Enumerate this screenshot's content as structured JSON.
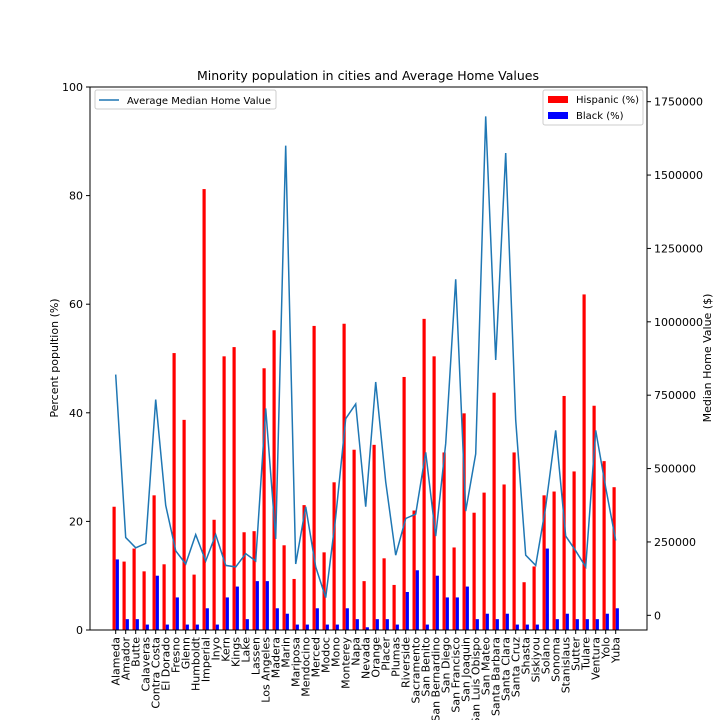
{
  "chart_data": {
    "type": "bar",
    "title": "Minority population in cities and Average Home Values",
    "ylabel": "Percent popultion (%)",
    "y2label": "Median Home Value ($)",
    "xlabel": "",
    "ylim": [
      0,
      100
    ],
    "y2lim": [
      -50000,
      1800000
    ],
    "yticks": [
      0,
      20,
      40,
      60,
      80,
      100
    ],
    "y2ticks": [
      0,
      250000,
      500000,
      750000,
      1000000,
      1250000,
      1500000,
      1750000
    ],
    "grid": false,
    "categories": [
      "Alameda",
      "Amador",
      "Butte",
      "Calaveras",
      "Contra Costa",
      "El Dorado",
      "Fresno",
      "Glenn",
      "Humboldt",
      "Imperial",
      "Inyo",
      "Kern",
      "Kings",
      "Lake",
      "Lassen",
      "Los Angeles",
      "Madera",
      "Marin",
      "Mariposa",
      "Mendocino",
      "Merced",
      "Modoc",
      "Mono",
      "Monterey",
      "Napa",
      "Nevada",
      "Orange",
      "Placer",
      "Plumas",
      "Riverside",
      "Sacramento",
      "San Benito",
      "San Bernardino",
      "San Diego",
      "San Francisco",
      "San Joaquin",
      "San Luis Obispo",
      "San Mateo",
      "Santa Barbara",
      "Santa Clara",
      "Santa Cruz",
      "Shasta",
      "Siskiyou",
      "Solano",
      "Sonoma",
      "Stanislaus",
      "Sutter",
      "Tulare",
      "Ventura",
      "Yolo",
      "Yuba"
    ],
    "series": [
      {
        "name": "Hispanic (%)",
        "kind": "bar",
        "axis": "left",
        "color": "#ff0000",
        "values": [
          22.7,
          12.6,
          15.0,
          10.8,
          24.8,
          12.1,
          51.0,
          38.7,
          10.2,
          81.2,
          20.3,
          50.4,
          52.1,
          18.0,
          18.2,
          48.2,
          55.2,
          15.6,
          9.4,
          23.0,
          56.0,
          14.3,
          27.2,
          56.4,
          33.2,
          9.0,
          34.1,
          13.2,
          8.3,
          46.6,
          22.0,
          57.3,
          50.4,
          32.7,
          15.2,
          39.9,
          21.6,
          25.3,
          43.7,
          26.8,
          32.7,
          8.8,
          11.7,
          24.8,
          25.5,
          43.1,
          29.2,
          61.8,
          41.3,
          31.1,
          26.3
        ]
      },
      {
        "name": "Black (%)",
        "kind": "bar",
        "axis": "left",
        "color": "#0000ff",
        "values": [
          13.0,
          2.0,
          2.0,
          1.0,
          10.0,
          1.0,
          6.0,
          1.0,
          1.0,
          4.0,
          1.0,
          6.0,
          8.0,
          2.0,
          9.0,
          9.0,
          4.0,
          3.0,
          1.0,
          1.0,
          4.0,
          1.0,
          1.0,
          4.0,
          2.0,
          0.5,
          2.0,
          2.0,
          1.0,
          7.0,
          11.0,
          1.0,
          10.0,
          6.0,
          6.0,
          8.0,
          2.0,
          3.0,
          2.0,
          3.0,
          1.0,
          1.0,
          1.0,
          15.0,
          2.0,
          3.0,
          2.0,
          2.0,
          2.0,
          3.0,
          4.0
        ]
      },
      {
        "name": "Average Median Home Value",
        "kind": "line",
        "axis": "right",
        "color": "#1f77b4",
        "values": [
          820000,
          265000,
          230000,
          245000,
          735000,
          375000,
          220000,
          175000,
          275000,
          185000,
          275000,
          170000,
          165000,
          210000,
          185000,
          705000,
          260000,
          1600000,
          175000,
          370000,
          165000,
          60000,
          335000,
          670000,
          720000,
          370000,
          795000,
          455000,
          205000,
          330000,
          345000,
          555000,
          270000,
          585000,
          1145000,
          355000,
          550000,
          1700000,
          870000,
          1575000,
          665000,
          205000,
          170000,
          370000,
          630000,
          270000,
          220000,
          165000,
          630000,
          435000,
          255000
        ]
      }
    ],
    "legends": [
      {
        "position": "top-left",
        "entries": [
          "Average Median Home Value"
        ]
      },
      {
        "position": "top-right",
        "entries": [
          "Hispanic (%)",
          "Black (%)"
        ]
      }
    ]
  }
}
